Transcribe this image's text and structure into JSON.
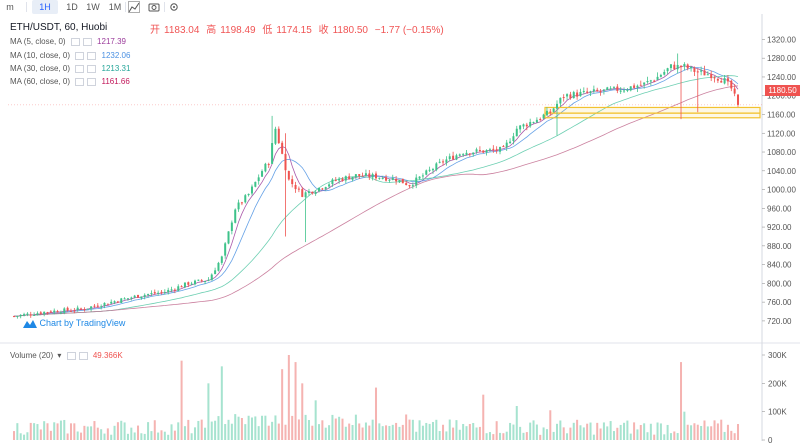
{
  "toolbar": {
    "items": [
      "m",
      "1H",
      "1D",
      "1W",
      "1M"
    ],
    "active": "1H"
  },
  "header": {
    "pair_label": "ETH/USDT, 60, Huobi",
    "open_label": "开",
    "open": "1183.04",
    "high_label": "高",
    "high": "1198.49",
    "low_label": "低",
    "low": "1174.15",
    "close_label": "收",
    "close": "1180.50",
    "change": "−1.77 (−0.15%)"
  },
  "legend": {
    "ma5_label": "MA (5, close, 0)",
    "ma5_value": "1217.39",
    "ma10_label": "MA (10, close, 0)",
    "ma10_value": "1232.06",
    "ma30_label": "MA (30, close, 0)",
    "ma30_value": "1213.31",
    "ma60_label": "MA (60, close, 0)",
    "ma60_value": "1161.66",
    "volume_label": "Volume (20)",
    "volume_value": "49.366K"
  },
  "watermark": "Chart by TradingView",
  "last_price_tag": "1180.50",
  "colors": {
    "up": "#26a69a",
    "up_fill": "#3ec28a",
    "down": "#ef5350",
    "vol_up": "#a6e3cf",
    "vol_down": "#f5b3b1",
    "ma5": "#9b3c9b",
    "ma10": "#4a90e2",
    "ma30": "#54c7a5",
    "ma60": "#c26b8e",
    "highlight": "#f2c230"
  },
  "chart_data": {
    "type": "candlestick",
    "price_axis": {
      "ticks": [
        1320,
        1280,
        1240,
        1200,
        1160,
        1120,
        1080,
        1040,
        1000,
        960,
        920,
        880,
        840,
        800,
        760,
        720
      ],
      "tick_labels": [
        "1320.00",
        "1280.00",
        "1240.00",
        "1200.00",
        "1160.00",
        "1120.00",
        "1080.00",
        "1040.00",
        "1000.00",
        "960.00",
        "920.00",
        "880.00",
        "840.00",
        "800.00",
        "760.00",
        "720.00"
      ],
      "range": [
        700,
        1325
      ]
    },
    "volume_axis": {
      "ticks": [
        300000,
        200000,
        100000,
        0
      ],
      "tick_labels": [
        "300K",
        "200K",
        "100K",
        "0"
      ],
      "range": [
        0,
        320000
      ]
    },
    "close_anchors": [
      [
        0,
        730
      ],
      [
        10,
        740
      ],
      [
        20,
        745
      ],
      [
        30,
        762
      ],
      [
        38,
        775
      ],
      [
        45,
        782
      ],
      [
        52,
        800
      ],
      [
        58,
        808
      ],
      [
        62,
        855
      ],
      [
        66,
        960
      ],
      [
        70,
        990
      ],
      [
        74,
        1040
      ],
      [
        76,
        1060
      ],
      [
        78,
        1130
      ],
      [
        82,
        1020
      ],
      [
        86,
        990
      ],
      [
        90,
        1000
      ],
      [
        96,
        1020
      ],
      [
        102,
        1030
      ],
      [
        108,
        1028
      ],
      [
        114,
        1022
      ],
      [
        118,
        1010
      ],
      [
        123,
        1035
      ],
      [
        128,
        1060
      ],
      [
        134,
        1080
      ],
      [
        140,
        1082
      ],
      [
        146,
        1085
      ],
      [
        150,
        1130
      ],
      [
        156,
        1150
      ],
      [
        160,
        1165
      ],
      [
        164,
        1200
      ],
      [
        170,
        1205
      ],
      [
        176,
        1210
      ],
      [
        182,
        1215
      ],
      [
        188,
        1225
      ],
      [
        192,
        1240
      ],
      [
        196,
        1262
      ],
      [
        200,
        1262
      ],
      [
        204,
        1250
      ],
      [
        208,
        1245
      ],
      [
        212,
        1232
      ],
      [
        214,
        1215
      ],
      [
        216,
        1180
      ]
    ],
    "spikes": [
      {
        "i": 77,
        "high": 1157
      },
      {
        "i": 81,
        "high": 1120,
        "low": 900
      },
      {
        "i": 87,
        "low": 888
      },
      {
        "i": 162,
        "low": 1115
      },
      {
        "i": 198,
        "high": 1290
      },
      {
        "i": 199,
        "low": 1150
      },
      {
        "i": 204,
        "low": 1165
      }
    ],
    "volume_spikes": [
      {
        "i": 50,
        "v": 280000
      },
      {
        "i": 58,
        "v": 200000
      },
      {
        "i": 62,
        "v": 260000
      },
      {
        "i": 80,
        "v": 250000
      },
      {
        "i": 82,
        "v": 300000
      },
      {
        "i": 84,
        "v": 275000
      },
      {
        "i": 86,
        "v": 200000
      },
      {
        "i": 90,
        "v": 140000
      },
      {
        "i": 108,
        "v": 185000
      },
      {
        "i": 140,
        "v": 160000
      },
      {
        "i": 150,
        "v": 120000
      },
      {
        "i": 160,
        "v": 105000
      },
      {
        "i": 199,
        "v": 275000
      },
      {
        "i": 200,
        "v": 100000
      }
    ],
    "highlight_zones": [
      {
        "y_top": 1175,
        "y_bottom": 1163
      },
      {
        "y_top": 1163,
        "y_bottom": 1153
      }
    ],
    "last_close": 1180.5
  }
}
